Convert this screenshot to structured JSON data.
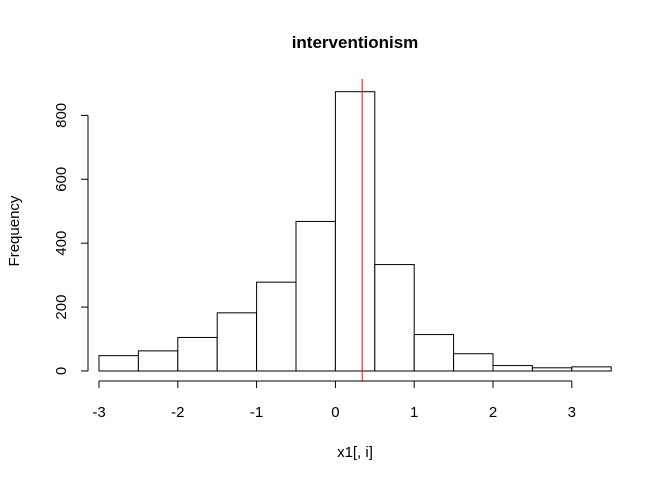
{
  "chart_data": {
    "type": "bar",
    "title": "interventionism",
    "xlabel": "x1[, i]",
    "ylabel": "Frequency",
    "bins": [
      {
        "x0": -3.0,
        "x1": -2.5,
        "count": 48
      },
      {
        "x0": -2.5,
        "x1": -2.0,
        "count": 63
      },
      {
        "x0": -2.0,
        "x1": -1.5,
        "count": 105
      },
      {
        "x0": -1.5,
        "x1": -1.0,
        "count": 182
      },
      {
        "x0": -1.0,
        "x1": -0.5,
        "count": 278
      },
      {
        "x0": -0.5,
        "x1": 0.0,
        "count": 468
      },
      {
        "x0": 0.0,
        "x1": 0.5,
        "count": 874
      },
      {
        "x0": 0.5,
        "x1": 1.0,
        "count": 333
      },
      {
        "x0": 1.0,
        "x1": 1.5,
        "count": 114
      },
      {
        "x0": 1.5,
        "x1": 2.0,
        "count": 54
      },
      {
        "x0": 2.0,
        "x1": 2.5,
        "count": 17
      },
      {
        "x0": 2.5,
        "x1": 3.0,
        "count": 10
      },
      {
        "x0": 3.0,
        "x1": 3.5,
        "count": 13
      }
    ],
    "xticks": [
      -3,
      -2,
      -1,
      0,
      1,
      2,
      3
    ],
    "yticks": [
      0,
      200,
      400,
      600,
      800
    ],
    "xlim": [
      -3,
      3.5
    ],
    "ylim": [
      0,
      874
    ],
    "reference_line": {
      "x": 0.34,
      "color": "#ff0000"
    },
    "bar_fill": "#ffffff",
    "bar_stroke": "#000000",
    "grid": false
  }
}
